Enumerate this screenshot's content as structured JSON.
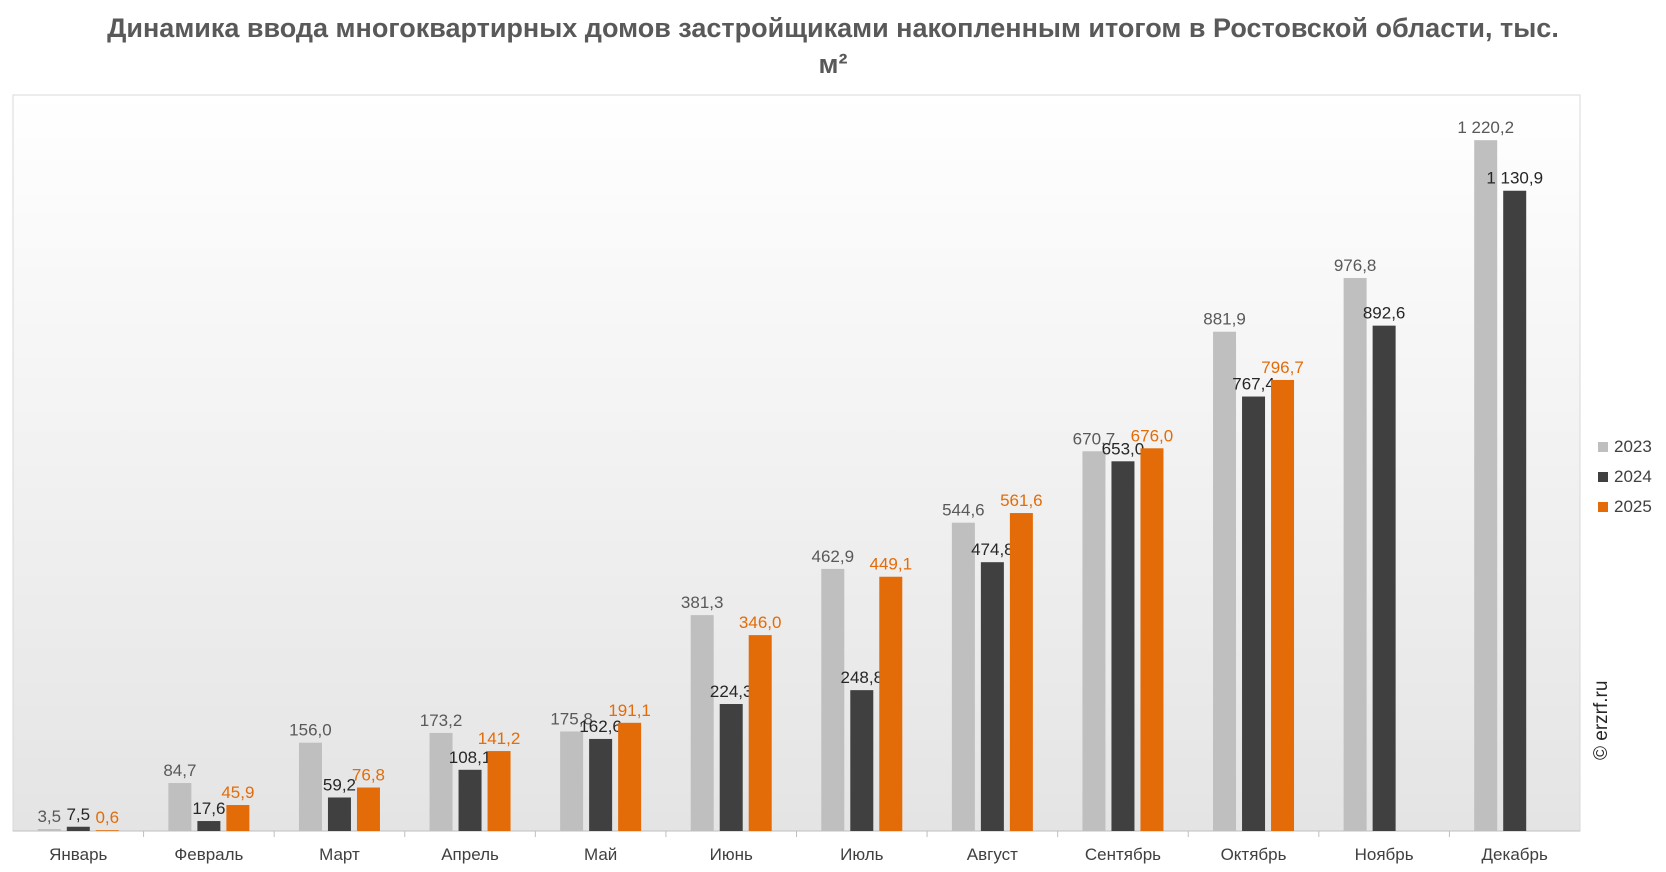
{
  "chart_data": {
    "type": "bar",
    "title": "Динамика ввода многоквартирных домов застройщиками накопленным итогом в Ростовской области, тыс. м²",
    "categories": [
      "Январь",
      "Февраль",
      "Март",
      "Апрель",
      "Май",
      "Июнь",
      "Июль",
      "Август",
      "Сентябрь",
      "Октябрь",
      "Ноябрь",
      "Декабрь"
    ],
    "series": [
      {
        "name": "2023",
        "color": "#bfbfbf",
        "label_color": "#595959",
        "values": [
          3.5,
          84.7,
          156.0,
          173.2,
          175.8,
          381.3,
          462.9,
          544.6,
          670.7,
          881.9,
          976.8,
          1220.2
        ],
        "labels": [
          "3,5",
          "84,7",
          "156,0",
          "173,2",
          "175,8",
          "381,3",
          "462,9",
          "544,6",
          "670,7",
          "881,9",
          "976,8",
          "1 220,2"
        ]
      },
      {
        "name": "2024",
        "color": "#404040",
        "label_color": "#262626",
        "values": [
          7.5,
          17.6,
          59.2,
          108.1,
          162.6,
          224.3,
          248.8,
          474.8,
          653.0,
          767.4,
          892.6,
          1130.9
        ],
        "labels": [
          "7,5",
          "17,6",
          "59,2",
          "108,1",
          "162,6",
          "224,3",
          "248,8",
          "474,8",
          "653,0",
          "767,4",
          "892,6",
          "1 130,9"
        ]
      },
      {
        "name": "2025",
        "color": "#e36c09",
        "label_color": "#e36c09",
        "values": [
          0.6,
          45.9,
          76.8,
          141.2,
          191.1,
          346.0,
          449.1,
          561.6,
          676.0,
          796.7,
          null,
          null
        ],
        "labels": [
          "0,6",
          "45,9",
          "76,8",
          "141,2",
          "191,1",
          "346,0",
          "449,1",
          "561,6",
          "676,0",
          "796,7",
          "",
          ""
        ]
      }
    ],
    "ylim": [
      0,
      1300
    ],
    "grid": false,
    "legend": "right"
  },
  "watermark": "© erzrf.ru"
}
